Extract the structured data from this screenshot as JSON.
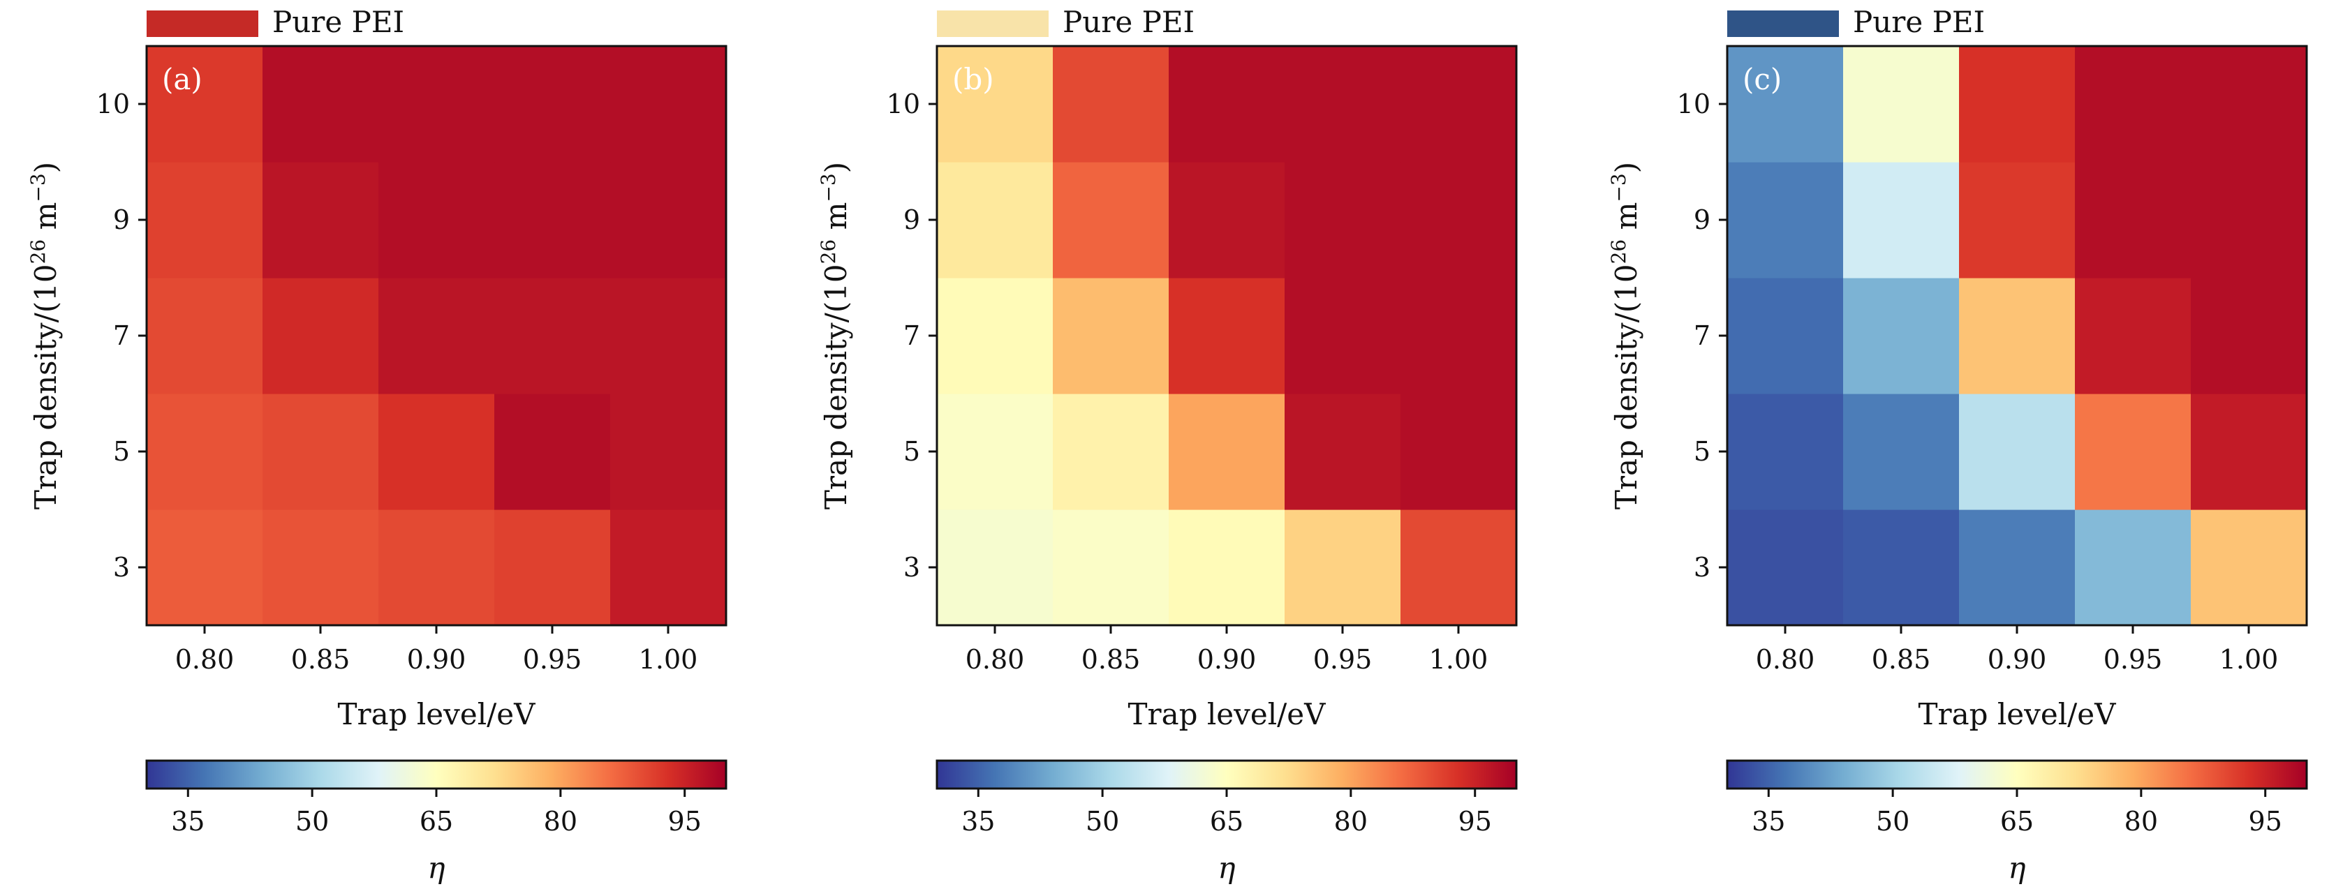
{
  "chart_data": [
    {
      "type": "heatmap",
      "panel_label": "(a)",
      "legend": {
        "label": "Pure PEI",
        "color": "#c52a26"
      },
      "xlabel": "Trap level/eV",
      "ylabel": "Trap density/(10^26 m^-3)",
      "ylabel_parts": {
        "prefix": "Trap density/(10",
        "exp1": "26",
        "mid": " m",
        "exp2": "−3",
        "suffix": ")"
      },
      "x": [
        "0.80",
        "0.85",
        "0.90",
        "0.95",
        "1.00"
      ],
      "y": [
        "3",
        "5",
        "7",
        "9",
        "10"
      ],
      "values": [
        [
          88,
          89,
          90,
          91,
          96
        ],
        [
          89,
          90,
          93,
          98,
          97
        ],
        [
          90,
          94,
          97,
          97,
          97
        ],
        [
          91,
          97,
          98,
          98,
          98
        ],
        [
          92,
          98,
          98,
          98,
          98
        ]
      ],
      "colorbar": {
        "label": "η",
        "ticks": [
          "35",
          "50",
          "65",
          "80",
          "95"
        ],
        "range": [
          30,
          100
        ]
      }
    },
    {
      "type": "heatmap",
      "panel_label": "(b)",
      "legend": {
        "label": "Pure PEI",
        "color": "#f8e3a9"
      },
      "xlabel": "Trap level/eV",
      "ylabel": "Trap density/(10^26 m^-3)",
      "ylabel_parts": {
        "prefix": "Trap density/(10",
        "exp1": "26",
        "mid": " m",
        "exp2": "−3",
        "suffix": ")"
      },
      "x": [
        "0.80",
        "0.85",
        "0.90",
        "0.95",
        "1.00"
      ],
      "y": [
        "3",
        "5",
        "7",
        "9",
        "10"
      ],
      "values": [
        [
          63,
          64,
          66,
          74,
          90
        ],
        [
          64,
          68,
          80,
          97,
          98
        ],
        [
          66,
          77,
          93,
          98,
          98
        ],
        [
          70,
          87,
          97,
          98,
          98
        ],
        [
          73,
          90,
          98,
          98,
          98
        ]
      ],
      "colorbar": {
        "label": "η",
        "ticks": [
          "35",
          "50",
          "65",
          "80",
          "95"
        ],
        "range": [
          30,
          100
        ]
      }
    },
    {
      "type": "heatmap",
      "panel_label": "(c)",
      "legend": {
        "label": "Pure PEI",
        "color": "#2f5487"
      },
      "xlabel": "Trap level/eV",
      "ylabel": "Trap density/(10^26 m^-3)",
      "ylabel_parts": {
        "prefix": "Trap density/(10",
        "exp1": "26",
        "mid": " m",
        "exp2": "−3",
        "suffix": ")"
      },
      "x": [
        "0.80",
        "0.85",
        "0.90",
        "0.95",
        "1.00"
      ],
      "y": [
        "3",
        "5",
        "7",
        "9",
        "10"
      ],
      "values": [
        [
          33,
          34,
          38,
          46,
          76
        ],
        [
          34,
          38,
          53,
          85,
          96
        ],
        [
          36,
          45,
          76,
          96,
          98
        ],
        [
          38,
          56,
          92,
          98,
          98
        ],
        [
          41,
          63,
          93,
          98,
          98
        ]
      ],
      "colorbar": {
        "label": "η",
        "ticks": [
          "35",
          "50",
          "65",
          "80",
          "95"
        ],
        "range": [
          30,
          100
        ]
      }
    }
  ]
}
